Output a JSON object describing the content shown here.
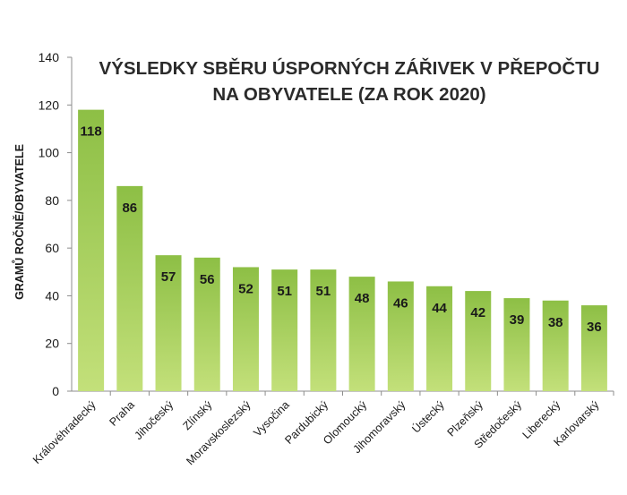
{
  "chart_data": {
    "type": "bar",
    "title": "VÝSLEDKY SBĚRU ÚSPORNÝCH ZÁŘIVEK V PŘEPOČTU NA OBYVATELE (ZA ROK 2020)",
    "xlabel": "",
    "ylabel": "GRAMŮ ROČNĚ/OBYVATELE",
    "ylim": [
      0,
      140
    ],
    "yticks": [
      0,
      20,
      40,
      60,
      80,
      100,
      120,
      140
    ],
    "grid": false,
    "legend": "none",
    "categories": [
      "Královéhradecký",
      "Praha",
      "Jihočeský",
      "Zlínský",
      "Moravskoslezský",
      "Vysočina",
      "Pardubický",
      "Olomoucký",
      "Jihomoravský",
      "Ústecký",
      "Plzeňský",
      "Středočeský",
      "Liberecký",
      "Karlovarský"
    ],
    "values": [
      118,
      86,
      57,
      56,
      52,
      51,
      51,
      48,
      46,
      44,
      42,
      39,
      38,
      36
    ],
    "bar_color": "#8dbf45",
    "bar_color_light": "#c3e07a",
    "label_color": "#1a1a1a"
  }
}
